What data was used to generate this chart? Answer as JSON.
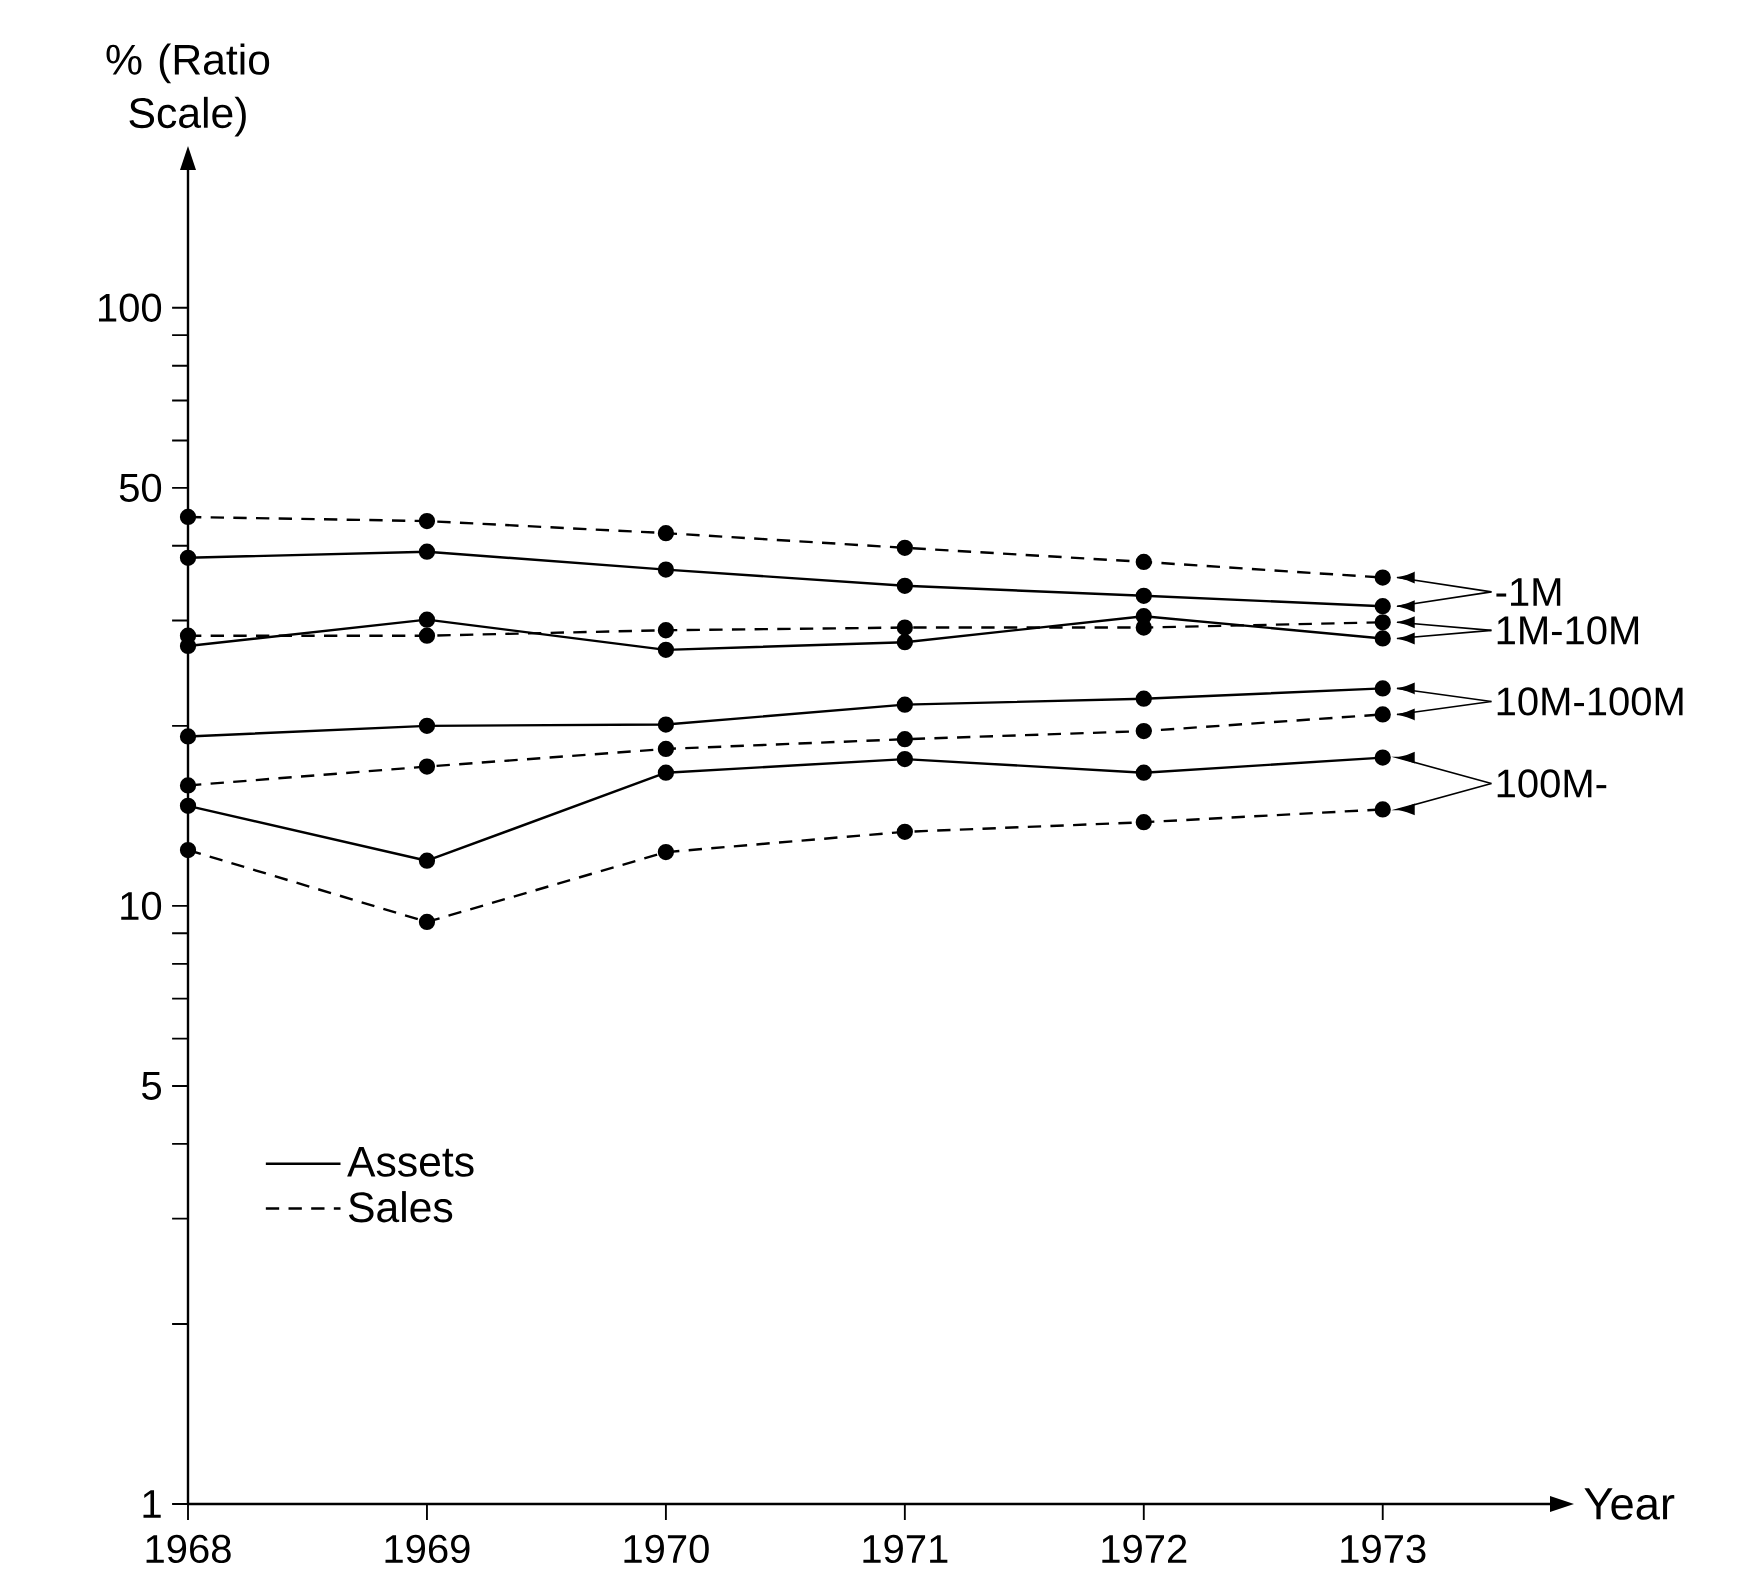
{
  "chart_data": {
    "type": "line",
    "xlabel": "Year",
    "ylabel": "% (Ratio Scale)",
    "x": [
      1968,
      1969,
      1970,
      1971,
      1972,
      1973
    ],
    "series": [
      {
        "name": "Assets",
        "color": "#000000",
        "line_style": "solid",
        "values": [
          38.2,
          39.1,
          36.5,
          34.3,
          33.0,
          31.7
        ]
      },
      {
        "name": "Sales",
        "color": "#000000",
        "line_style": "dashed",
        "values": [
          44.7,
          44.0,
          42.0,
          39.7,
          37.6,
          35.4
        ]
      },
      {
        "color": "#000000",
        "line_style": "solid",
        "values": [
          27.2,
          30.1,
          26.8,
          27.6,
          30.5,
          28.0
        ]
      },
      {
        "color": "#000000",
        "line_style": "dashed",
        "values": [
          28.3,
          28.3,
          28.9,
          29.2,
          29.2,
          29.8
        ]
      },
      {
        "color": "#000000",
        "line_style": "solid",
        "values": [
          19.2,
          20.0,
          20.1,
          21.7,
          22.2,
          23.1
        ]
      },
      {
        "color": "#000000",
        "line_style": "dashed",
        "values": [
          15.9,
          17.1,
          18.3,
          19.0,
          19.6,
          20.9
        ]
      },
      {
        "color": "#000000",
        "line_style": "solid",
        "values": [
          14.7,
          11.9,
          16.7,
          17.6,
          16.7,
          17.7
        ]
      },
      {
        "color": "#000000",
        "line_style": "dashed",
        "values": [
          12.4,
          9.4,
          12.3,
          13.3,
          13.8,
          14.5
        ]
      }
    ],
    "annotations": [
      "-1M",
      "1M-10M",
      "10M-100M",
      "100M-"
    ],
    "xlim": [
      1968,
      1973.7
    ],
    "xticks": [
      1968,
      1969,
      1970,
      1971,
      1972,
      1973
    ],
    "ylim": [
      1,
      170
    ],
    "log": "y",
    "yticks": [
      1,
      {
        "value": 2,
        "label": null
      },
      {
        "value": 3,
        "label": null
      },
      {
        "value": 4,
        "label": null
      },
      5,
      {
        "value": 6,
        "label": null
      },
      {
        "value": 7,
        "label": null
      },
      {
        "value": 8,
        "label": null
      },
      {
        "value": 9,
        "label": null
      },
      10,
      {
        "value": 20,
        "label": null
      },
      {
        "value": 30,
        "label": null
      },
      {
        "value": 40,
        "label": null
      },
      50,
      {
        "value": 60,
        "label": null
      },
      {
        "value": 70,
        "label": null
      },
      {
        "value": 80,
        "label": null
      },
      {
        "value": 90,
        "label": null
      },
      100
    ],
    "marker": "circle",
    "grid": false,
    "legend": "bottom left"
  }
}
